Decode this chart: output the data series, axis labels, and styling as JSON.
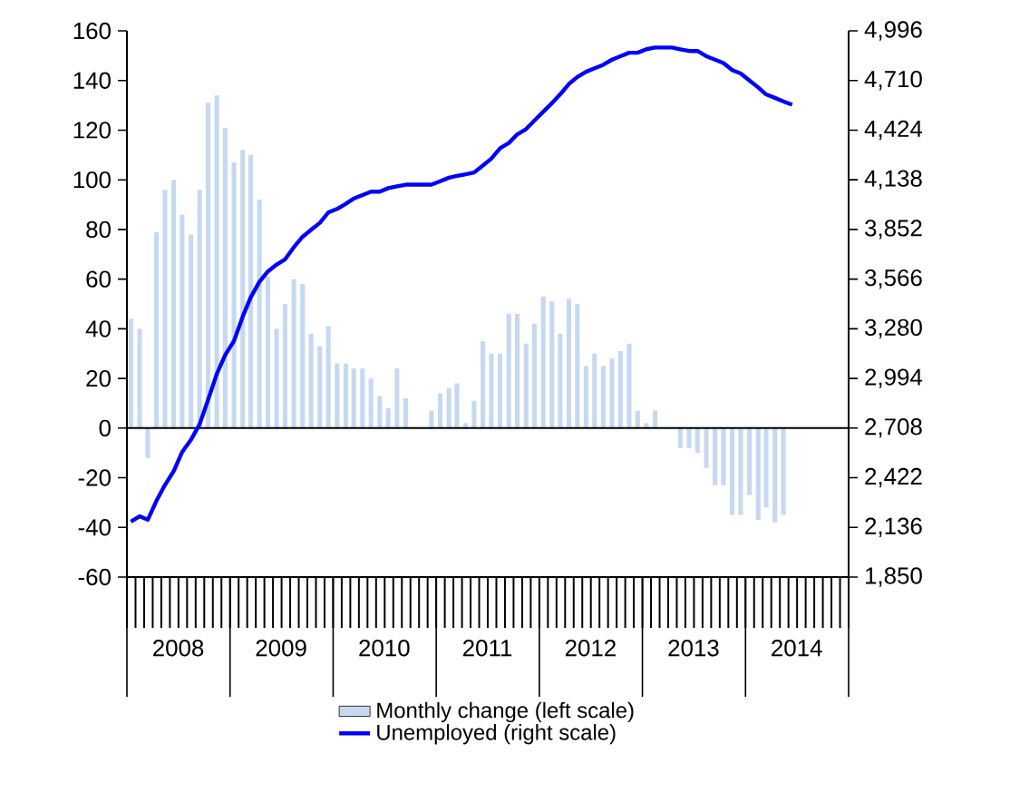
{
  "chart_data": {
    "type": "bar",
    "x": [
      "2008-01-15",
      "2008-02-15",
      "2008-03-15",
      "2008-04-15",
      "2008-05-15",
      "2008-06-15",
      "2008-07-15",
      "2008-08-15",
      "2008-09-15",
      "2008-10-15",
      "2008-11-15",
      "2008-12-15",
      "2009-01-15",
      "2009-02-15",
      "2009-03-15",
      "2009-04-15",
      "2009-05-15",
      "2009-06-15",
      "2009-07-15",
      "2009-08-15",
      "2009-09-15",
      "2009-10-15",
      "2009-11-15",
      "2009-12-15",
      "2010-01-15",
      "2010-02-15",
      "2010-03-15",
      "2010-04-15",
      "2010-05-15",
      "2010-06-15",
      "2010-07-15",
      "2010-08-15",
      "2010-09-15",
      "2010-10-15",
      "2010-11-15",
      "2010-12-15",
      "2011-01-15",
      "2011-02-15",
      "2011-03-15",
      "2011-04-15",
      "2011-05-15",
      "2011-06-15",
      "2011-07-15",
      "2011-08-15",
      "2011-09-15",
      "2011-10-15",
      "2011-11-15",
      "2011-12-15",
      "2012-01-15",
      "2012-02-15",
      "2012-03-15",
      "2012-04-15",
      "2012-05-15",
      "2012-06-15",
      "2012-07-15",
      "2012-08-15",
      "2012-09-15",
      "2012-10-15",
      "2012-11-15",
      "2012-12-15",
      "2013-01-15",
      "2013-02-15",
      "2013-03-15",
      "2013-04-15",
      "2013-05-15",
      "2013-06-15",
      "2013-07-15",
      "2013-08-15",
      "2013-09-15",
      "2013-10-15",
      "2013-11-15",
      "2013-12-15",
      "2014-01-15",
      "2014-02-15",
      "2014-03-15",
      "2014-04-15",
      "2014-05-15",
      "2014-06-15"
    ],
    "series": [
      {
        "name": "Monthly change (left scale)",
        "color": "#c6d9f1",
        "values": [
          44,
          40,
          -12,
          79,
          96,
          100,
          86,
          78,
          96,
          131,
          134,
          121,
          107,
          112,
          110,
          92,
          61,
          40,
          50,
          60,
          58,
          38,
          33,
          41,
          26,
          26,
          24,
          24,
          20,
          13,
          8,
          24,
          12,
          0,
          0,
          7,
          14,
          16,
          18,
          2,
          11,
          35,
          30,
          30,
          46,
          46,
          34,
          42,
          53,
          51,
          38,
          52,
          50,
          25,
          30,
          25,
          28,
          31,
          34,
          7,
          2,
          7,
          0,
          0,
          -8,
          -8,
          -10,
          -16,
          -23,
          -23,
          -35,
          -35,
          -27,
          -37,
          -32,
          -38,
          -35,
          null
        ]
      },
      {
        "name": "Unemployed (right scale)",
        "type": "line",
        "axis": "y2",
        "color": "#0000ff",
        "values": [
          2170,
          2200,
          2180,
          2290,
          2380,
          2460,
          2570,
          2640,
          2730,
          2870,
          3020,
          3130,
          3210,
          3350,
          3460,
          3550,
          3610,
          3650,
          3680,
          3750,
          3810,
          3850,
          3890,
          3950,
          3970,
          4000,
          4030,
          4050,
          4070,
          4070,
          4090,
          4100,
          4110,
          4110,
          4110,
          4110,
          4130,
          4150,
          4160,
          4170,
          4180,
          4220,
          4260,
          4320,
          4350,
          4400,
          4430,
          4480,
          4530,
          4580,
          4630,
          4690,
          4730,
          4760,
          4780,
          4800,
          4830,
          4850,
          4870,
          4870,
          4890,
          4900,
          4900,
          4900,
          4890,
          4880,
          4880,
          4850,
          4830,
          4810,
          4770,
          4750,
          4710,
          4670,
          4630,
          4610,
          4590,
          4570
        ]
      }
    ],
    "xlim": [
      "2008-01-01",
      "2015-01-01"
    ],
    "xticks": [
      {
        "value": "2008-07-01",
        "label": "2008"
      },
      {
        "value": "2009-07-01",
        "label": "2009"
      },
      {
        "value": "2010-07-01",
        "label": "2010"
      },
      {
        "value": "2011-07-01",
        "label": "2011"
      },
      {
        "value": "2012-07-01",
        "label": "2012"
      },
      {
        "value": "2013-07-01",
        "label": "2013"
      },
      {
        "value": "2014-07-01",
        "label": "2014"
      }
    ],
    "ylim": [
      -60,
      160
    ],
    "yticks": [
      -60,
      -40,
      -20,
      0,
      20,
      40,
      60,
      80,
      100,
      120,
      140,
      160
    ],
    "y2lim": [
      1850,
      4996
    ],
    "y2ticks": [
      {
        "value": 1850,
        "label": "1,850"
      },
      {
        "value": 2136,
        "label": "2,136"
      },
      {
        "value": 2422,
        "label": "2,422"
      },
      {
        "value": 2708,
        "label": "2,708"
      },
      {
        "value": 2994,
        "label": "2,994"
      },
      {
        "value": 3280,
        "label": "3,280"
      },
      {
        "value": 3566,
        "label": "3,566"
      },
      {
        "value": 3852,
        "label": "3,852"
      },
      {
        "value": 4138,
        "label": "4,138"
      },
      {
        "value": 4424,
        "label": "4,424"
      },
      {
        "value": 4710,
        "label": "4,710"
      },
      {
        "value": 4996,
        "label": "4,996"
      }
    ],
    "legend": "bottom"
  }
}
